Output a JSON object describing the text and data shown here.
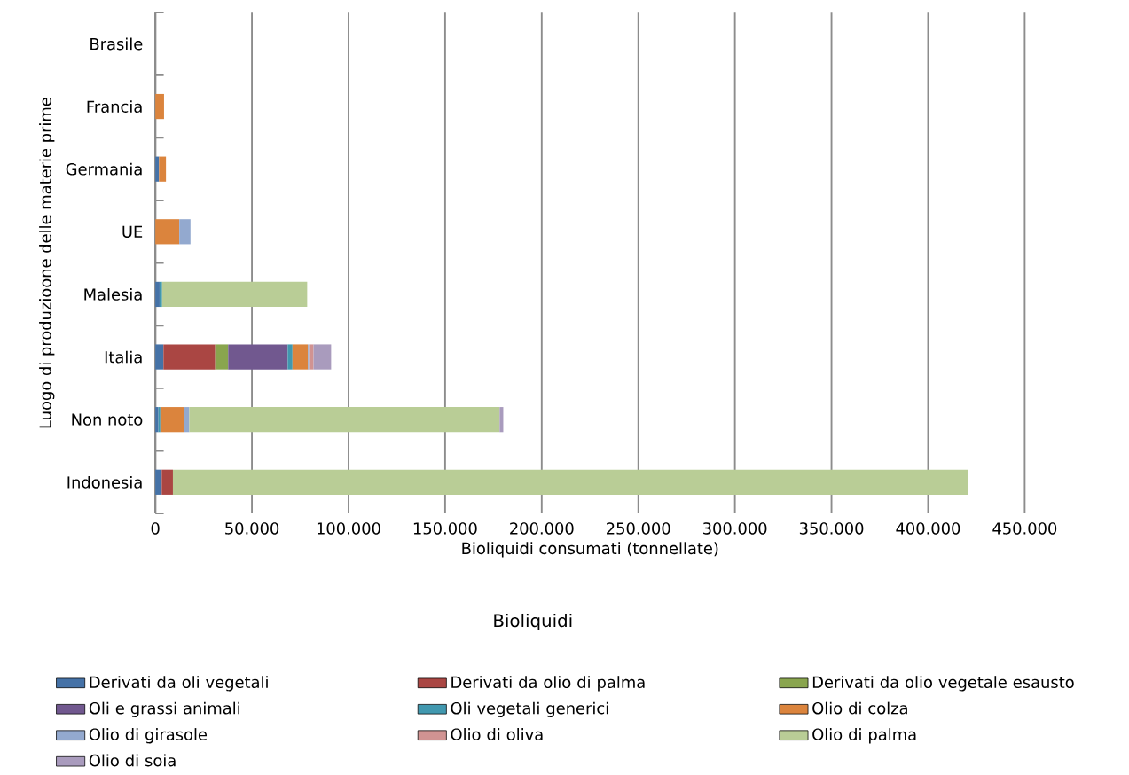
{
  "chart_data": {
    "type": "bar",
    "orientation": "horizontal",
    "stacked": true,
    "xlabel": "Bioliquidi consumati (tonnellate)",
    "ylabel": "Luogo di produzioone delle materie prime",
    "legend_title": "Bioliquidi",
    "categories": [
      "Brasile",
      "Francia",
      "Germania",
      "UE",
      "Malesia",
      "Italia",
      "Non noto",
      "Indonesia"
    ],
    "series": [
      {
        "name": "Derivati da oli vegetali",
        "color": "#4572a7",
        "values": [
          null,
          null,
          1900,
          null,
          2200,
          4200,
          1600,
          3300
        ]
      },
      {
        "name": "Derivati da olio di palma",
        "color": "#aa4643",
        "values": [
          null,
          null,
          null,
          null,
          null,
          26800,
          null,
          5800
        ]
      },
      {
        "name": "Derivati da olio vegetale esausto",
        "color": "#89a54e",
        "values": [
          null,
          null,
          null,
          null,
          null,
          6700,
          null,
          null
        ]
      },
      {
        "name": "Oli e grassi animali",
        "color": "#71588f",
        "values": [
          null,
          null,
          null,
          null,
          null,
          30800,
          null,
          null
        ]
      },
      {
        "name": "Oli vegetali generici",
        "color": "#4198af",
        "values": [
          null,
          null,
          null,
          null,
          1300,
          2500,
          1000,
          null
        ]
      },
      {
        "name": "Olio di colza",
        "color": "#db843d",
        "values": [
          null,
          4500,
          3600,
          12400,
          null,
          8000,
          12400,
          null
        ]
      },
      {
        "name": "Olio di girasole",
        "color": "#93a9cf",
        "values": [
          null,
          null,
          null,
          5800,
          null,
          600,
          2600,
          null
        ]
      },
      {
        "name": "Olio di oliva",
        "color": "#d19392",
        "values": [
          null,
          null,
          null,
          null,
          null,
          2300,
          null,
          null
        ]
      },
      {
        "name": "Olio di palma",
        "color": "#b9cd96",
        "values": [
          null,
          null,
          null,
          null,
          75100,
          null,
          160600,
          411600
        ]
      },
      {
        "name": "Olio di soia",
        "color": "#a99bbd",
        "values": [
          null,
          null,
          null,
          null,
          null,
          9100,
          1900,
          null
        ]
      }
    ],
    "xlim": [
      0,
      450000
    ],
    "xticks": [
      0,
      {
        "value": 50000,
        "label": "50.000"
      },
      {
        "value": 100000,
        "label": "100.000"
      },
      {
        "value": 150000,
        "label": "150.000"
      },
      {
        "value": 200000,
        "label": "200.000"
      },
      {
        "value": 250000,
        "label": "250.000"
      },
      {
        "value": 300000,
        "label": "300.000"
      },
      {
        "value": 350000,
        "label": "350.000"
      },
      {
        "value": 400000,
        "label": "400.000"
      },
      {
        "value": 450000,
        "label": "450.000"
      }
    ],
    "grid": "x",
    "legend": "bottom"
  }
}
